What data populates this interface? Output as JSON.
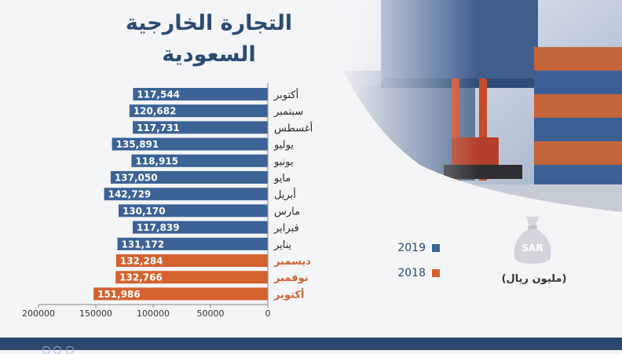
{
  "chart_data": {
    "type": "bar",
    "orientation": "horizontal",
    "title": "التجارة الخارجية السعودية",
    "unit_label": "(مليون ريال)",
    "categories": [
      "أكتوبر",
      "سبتمبر",
      "أغسطس",
      "يوليو",
      "يونيو",
      "مايو",
      "أبريل",
      "مارس",
      "فبراير",
      "يناير",
      "ديسمبر",
      "نوفمبر",
      "أكتوبر"
    ],
    "values": [
      117544,
      120682,
      117731,
      135891,
      118915,
      137050,
      142729,
      130170,
      117839,
      131172,
      132284,
      132766,
      151986
    ],
    "value_labels": [
      "117,544",
      "120,682",
      "117,731",
      "135,891",
      "118,915",
      "137,050",
      "142,729",
      "130,170",
      "117,839",
      "131,172",
      "132,284",
      "132,766",
      "151,986"
    ],
    "year": [
      2019,
      2019,
      2019,
      2019,
      2019,
      2019,
      2019,
      2019,
      2019,
      2019,
      2018,
      2018,
      2018
    ],
    "series": [
      {
        "name": "2019",
        "color": "#3c6396"
      },
      {
        "name": "2018",
        "color": "#d4622f"
      }
    ],
    "xlim": [
      200000,
      0
    ],
    "x_ticks": [
      200000,
      150000,
      100000,
      50000,
      0
    ],
    "x_tick_labels": [
      "200000",
      "150000",
      "100000",
      "50000",
      "0"
    ],
    "legend_position": "bottom-right",
    "grid": false
  },
  "icon": {
    "name": "money-bag-icon",
    "text": "SAR"
  },
  "colors": {
    "title": "#2b4b72",
    "footer": "#2d4a6e",
    "icon": "#d2d6dc"
  }
}
